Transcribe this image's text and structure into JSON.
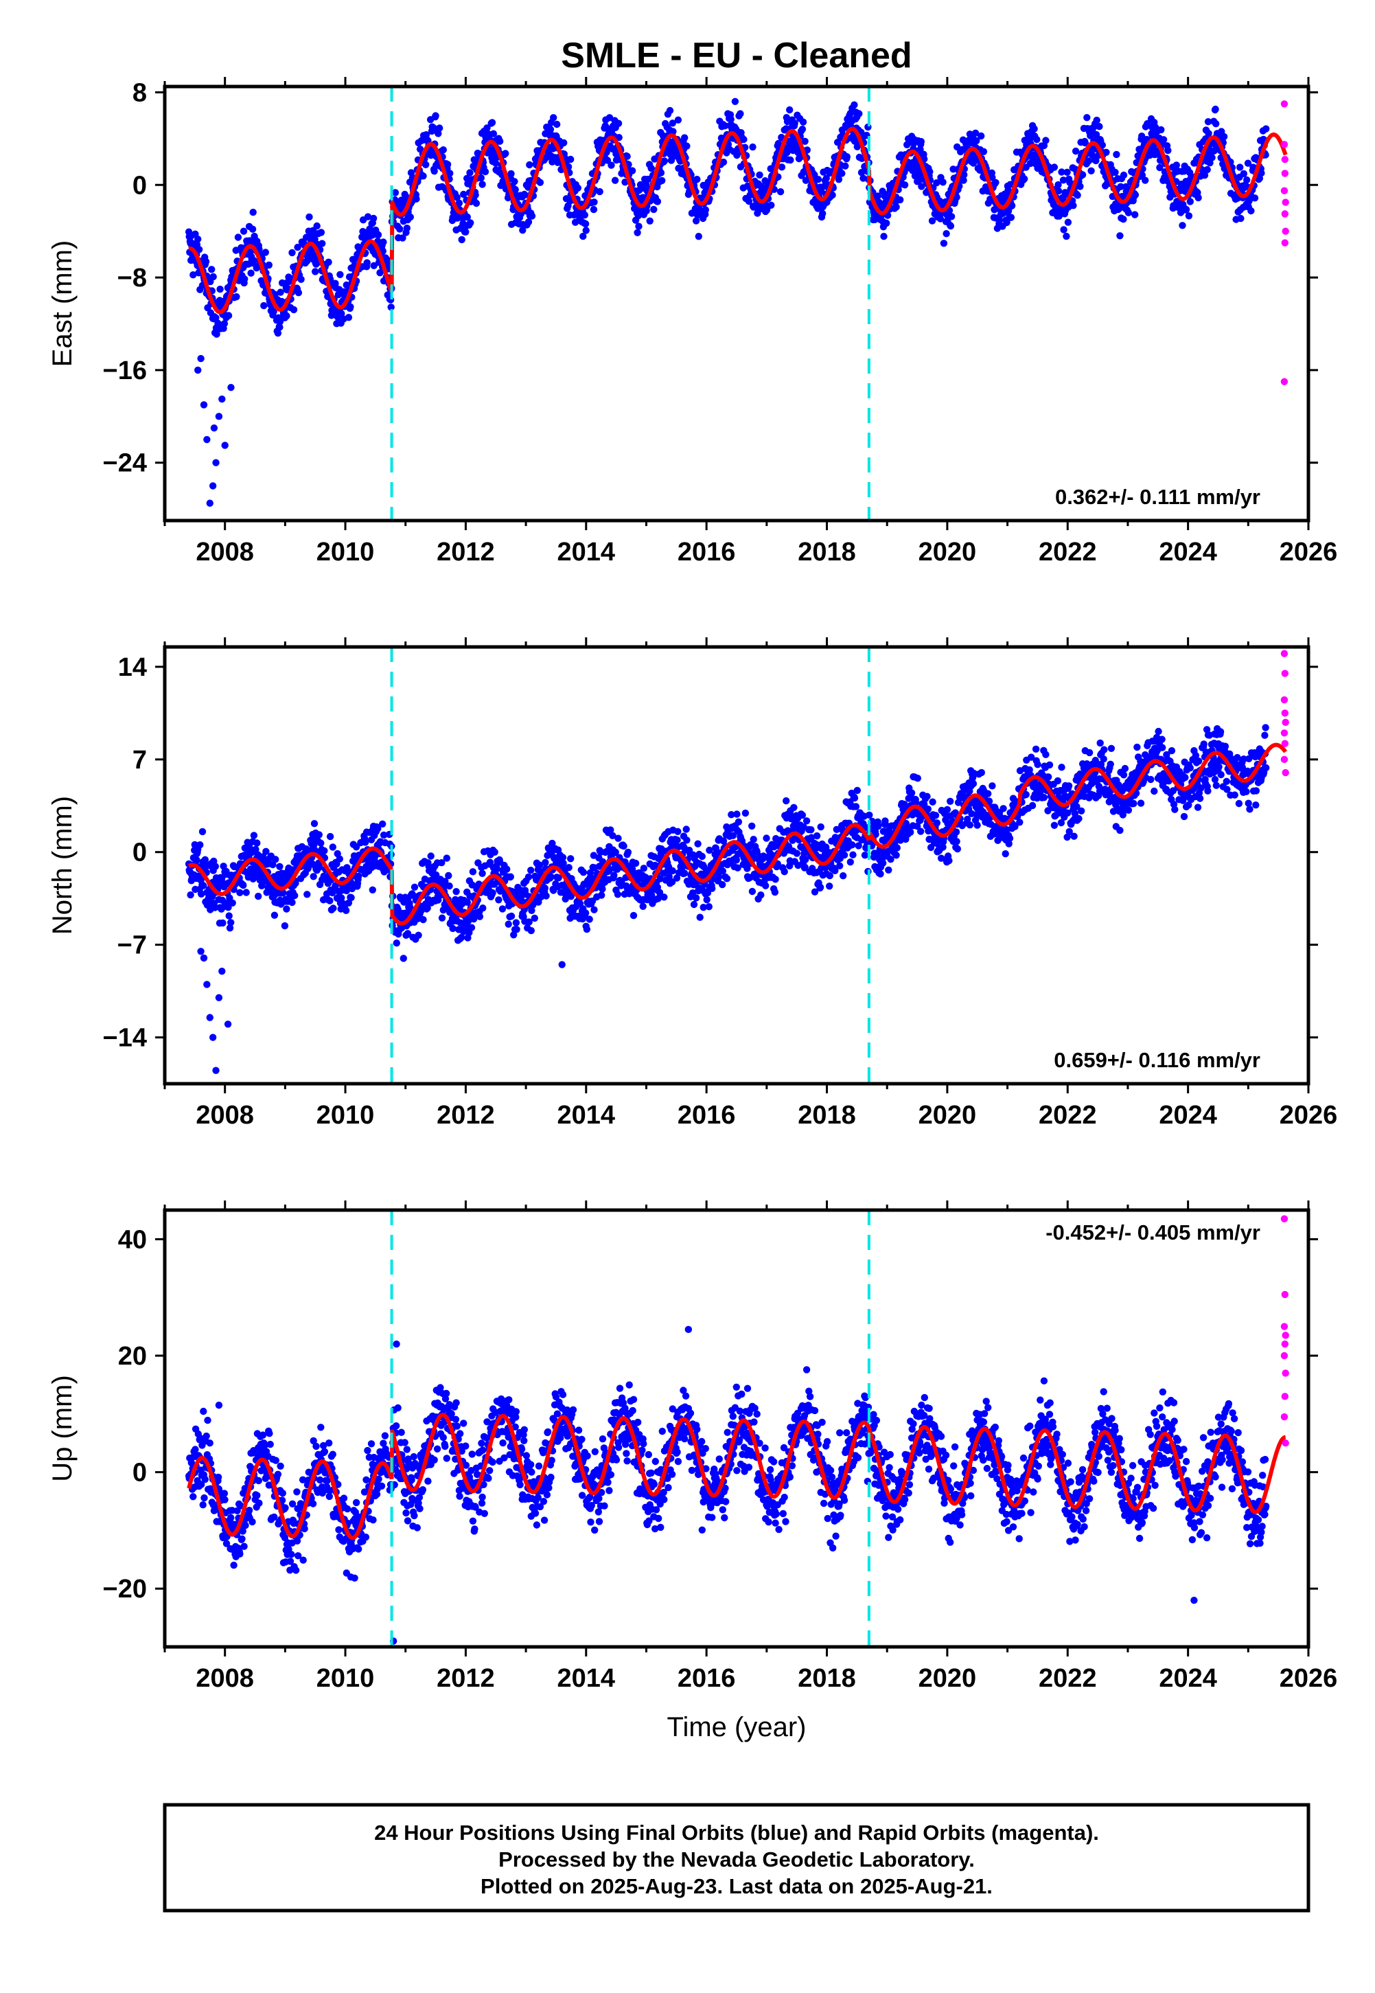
{
  "title": "SMLE  - EU - Cleaned",
  "colors": {
    "final_orbits": "#0000ff",
    "rapid_orbits": "#ff00ff",
    "model_fit": "#ff0000",
    "offset_lines": "#00e5e5"
  },
  "footer": {
    "line1": "24 Hour Positions Using Final Orbits (blue) and Rapid Orbits (magenta).",
    "line2": "Processed by the Nevada Geodetic Laboratory.",
    "line3": "Plotted on 2025-Aug-23. Last data on 2025-Aug-21."
  },
  "chart_data": [
    {
      "type": "scatter",
      "component": "east",
      "ylabel": "East (mm)",
      "xlabel": "",
      "xlim": [
        2007.0,
        2026.0
      ],
      "ylim": [
        -29,
        8.5
      ],
      "xticks": [
        2008,
        2010,
        2012,
        2014,
        2016,
        2018,
        2020,
        2022,
        2024,
        2026
      ],
      "xtick_labels": [
        "2008",
        "2010",
        "2012",
        "2014",
        "2016",
        "2018",
        "2020",
        "2022",
        "2024",
        "2026"
      ],
      "yticks": [
        8,
        0,
        -8,
        -16,
        -24
      ],
      "ytick_labels": [
        "8",
        "0",
        "−8",
        "−16",
        "−24"
      ],
      "rate_label": "0.362+/- 0.111 mm/yr",
      "rate_position": "bottom-right",
      "offsets": [
        2010.77,
        2018.7
      ],
      "data_span": [
        2007.4,
        2025.3
      ],
      "model": {
        "segments": [
          {
            "x0": 2007.4,
            "x1": 2010.77,
            "level_start": -8.3,
            "level_end": -7.6,
            "amplitude": 2.8
          },
          {
            "x0": 2010.77,
            "x1": 2018.7,
            "level_start": 0.4,
            "level_end": 1.9,
            "amplitude": 3.0
          },
          {
            "x0": 2018.7,
            "x1": 2025.62,
            "level_start": 0.1,
            "level_end": 1.8,
            "amplitude": 2.6
          }
        ],
        "phase_year": 0.42
      },
      "scatter_sd": 1.1,
      "outliers": [
        {
          "x": 2007.75,
          "y": -27.5
        },
        {
          "x": 2007.8,
          "y": -26.0
        },
        {
          "x": 2007.85,
          "y": -24.0
        },
        {
          "x": 2007.7,
          "y": -22.0
        },
        {
          "x": 2007.9,
          "y": -20.0
        },
        {
          "x": 2007.95,
          "y": -18.5
        },
        {
          "x": 2008.0,
          "y": -22.5
        },
        {
          "x": 2007.65,
          "y": -19.0
        },
        {
          "x": 2007.55,
          "y": -16.0
        },
        {
          "x": 2008.1,
          "y": -17.5
        },
        {
          "x": 2007.82,
          "y": -21.0
        },
        {
          "x": 2007.6,
          "y": -15.0
        }
      ],
      "rapid_points": [
        {
          "x": 2025.6,
          "y": 7.0
        },
        {
          "x": 2025.6,
          "y": 3.5
        },
        {
          "x": 2025.61,
          "y": 2.2
        },
        {
          "x": 2025.61,
          "y": 1.0
        },
        {
          "x": 2025.6,
          "y": -0.5
        },
        {
          "x": 2025.62,
          "y": -1.5
        },
        {
          "x": 2025.61,
          "y": -2.5
        },
        {
          "x": 2025.62,
          "y": -4.0
        },
        {
          "x": 2025.61,
          "y": -5.0
        },
        {
          "x": 2025.6,
          "y": -17.0
        }
      ]
    },
    {
      "type": "scatter",
      "component": "north",
      "ylabel": "North (mm)",
      "xlabel": "",
      "xlim": [
        2007.0,
        2026.0
      ],
      "ylim": [
        -17.5,
        15.5
      ],
      "xticks": [
        2008,
        2010,
        2012,
        2014,
        2016,
        2018,
        2020,
        2022,
        2024,
        2026
      ],
      "xtick_labels": [
        "2008",
        "2010",
        "2012",
        "2014",
        "2016",
        "2018",
        "2020",
        "2022",
        "2024",
        "2026"
      ],
      "yticks": [
        14,
        7,
        0,
        -7,
        -14
      ],
      "ytick_labels": [
        "14",
        "7",
        "0",
        "−7",
        "−14"
      ],
      "rate_label": "0.659+/- 0.116 mm/yr",
      "rate_position": "bottom-right",
      "offsets": [
        2010.77,
        2018.7
      ],
      "data_span": [
        2007.4,
        2025.3
      ],
      "model": {
        "segments": [
          {
            "x0": 2007.4,
            "x1": 2010.77,
            "level_start": -2.2,
            "level_end": -0.8,
            "amplitude": 1.2
          },
          {
            "x0": 2010.77,
            "x1": 2018.7,
            "level_start": -4.2,
            "level_end": 0.9,
            "amplitude": 1.3
          },
          {
            "x0": 2018.7,
            "x1": 2021.2,
            "level_start": 1.5,
            "level_end": 3.6,
            "amplitude": 1.3
          },
          {
            "x0": 2021.2,
            "x1": 2025.62,
            "level_start": 4.3,
            "level_end": 7.0,
            "amplitude": 1.2
          }
        ],
        "phase_year": 0.45
      },
      "scatter_sd": 1.1,
      "outliers": [
        {
          "x": 2007.65,
          "y": -8.0
        },
        {
          "x": 2007.7,
          "y": -10.0
        },
        {
          "x": 2007.75,
          "y": -12.5
        },
        {
          "x": 2007.8,
          "y": -14.0
        },
        {
          "x": 2007.85,
          "y": -16.5
        },
        {
          "x": 2007.9,
          "y": -11.0
        },
        {
          "x": 2007.95,
          "y": -9.0
        },
        {
          "x": 2008.05,
          "y": -13.0
        },
        {
          "x": 2007.6,
          "y": -7.5
        },
        {
          "x": 2013.6,
          "y": -8.5
        }
      ],
      "rapid_points": [
        {
          "x": 2025.6,
          "y": 15.0
        },
        {
          "x": 2025.61,
          "y": 13.5
        },
        {
          "x": 2025.6,
          "y": 11.5
        },
        {
          "x": 2025.61,
          "y": 10.5
        },
        {
          "x": 2025.62,
          "y": 9.8
        },
        {
          "x": 2025.6,
          "y": 9.0
        },
        {
          "x": 2025.61,
          "y": 8.2
        },
        {
          "x": 2025.6,
          "y": 7.0
        },
        {
          "x": 2025.62,
          "y": 6.0
        }
      ]
    },
    {
      "type": "scatter",
      "component": "up",
      "ylabel": "Up (mm)",
      "xlabel": "Time (year)",
      "xlim": [
        2007.0,
        2026.0
      ],
      "ylim": [
        -30,
        45
      ],
      "xticks": [
        2008,
        2010,
        2012,
        2014,
        2016,
        2018,
        2020,
        2022,
        2024,
        2026
      ],
      "xtick_labels": [
        "2008",
        "2010",
        "2012",
        "2014",
        "2016",
        "2018",
        "2020",
        "2022",
        "2024",
        "2026"
      ],
      "yticks": [
        40,
        20,
        0,
        -20
      ],
      "ytick_labels": [
        "40",
        "20",
        "0",
        "−20"
      ],
      "rate_label": "-0.452+/- 0.405 mm/yr",
      "rate_position": "top-right",
      "offsets": [
        2010.77,
        2018.7
      ],
      "data_span": [
        2007.4,
        2025.3
      ],
      "model": {
        "segments": [
          {
            "x0": 2007.4,
            "x1": 2010.77,
            "level_start": -4.0,
            "level_end": -5.0,
            "amplitude": 6.5
          },
          {
            "x0": 2010.77,
            "x1": 2018.7,
            "level_start": 3.5,
            "level_end": 2.0,
            "amplitude": 6.5
          },
          {
            "x0": 2018.7,
            "x1": 2025.62,
            "level_start": 1.5,
            "level_end": -0.5,
            "amplitude": 6.5
          }
        ],
        "phase_year": 0.62
      },
      "scatter_sd": 3.2,
      "outliers": [
        {
          "x": 2010.8,
          "y": -29.0
        },
        {
          "x": 2015.7,
          "y": 24.5
        },
        {
          "x": 2024.1,
          "y": -22.0
        },
        {
          "x": 2010.85,
          "y": 22.0
        },
        {
          "x": 2007.9,
          "y": 11.5
        }
      ],
      "rapid_points": [
        {
          "x": 2025.6,
          "y": 43.5
        },
        {
          "x": 2025.61,
          "y": 30.5
        },
        {
          "x": 2025.6,
          "y": 25.0
        },
        {
          "x": 2025.62,
          "y": 23.5
        },
        {
          "x": 2025.61,
          "y": 22.0
        },
        {
          "x": 2025.6,
          "y": 20.0
        },
        {
          "x": 2025.62,
          "y": 17.0
        },
        {
          "x": 2025.61,
          "y": 13.0
        },
        {
          "x": 2025.6,
          "y": 9.5
        },
        {
          "x": 2025.62,
          "y": 5.0
        }
      ]
    }
  ]
}
